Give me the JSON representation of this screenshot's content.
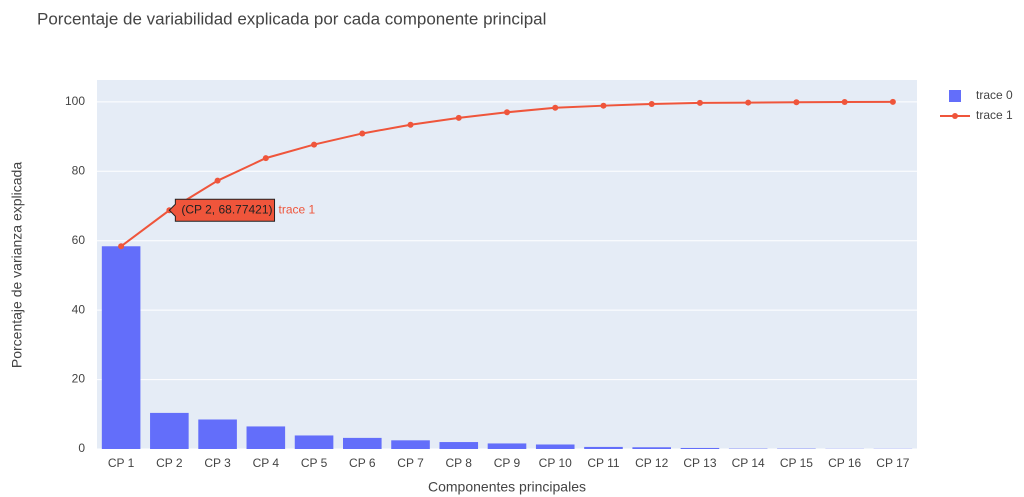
{
  "chart_data": {
    "type": "bar_line",
    "title": "Porcentaje de variabilidad explicada por cada componente principal",
    "xlabel": "Componentes principales",
    "ylabel": "Porcentaje de varianza explicada",
    "categories": [
      "CP 1",
      "CP 2",
      "CP 3",
      "CP 4",
      "CP 5",
      "CP 6",
      "CP 7",
      "CP 8",
      "CP 9",
      "CP 10",
      "CP 11",
      "CP 12",
      "CP 13",
      "CP 14",
      "CP 15",
      "CP 16",
      "CP 17"
    ],
    "series": [
      {
        "name": "trace 0",
        "type": "bar",
        "color": "#636efa",
        "values": [
          58.4,
          10.4,
          8.5,
          6.5,
          3.9,
          3.2,
          2.5,
          2.0,
          1.6,
          1.3,
          0.6,
          0.5,
          0.3,
          0.1,
          0.1,
          0.05,
          0.05
        ]
      },
      {
        "name": "trace 1",
        "type": "line",
        "color": "#ef553b",
        "values": [
          58.4,
          68.77421,
          77.3,
          83.8,
          87.7,
          90.9,
          93.4,
          95.4,
          97.0,
          98.3,
          98.9,
          99.4,
          99.7,
          99.8,
          99.9,
          99.95,
          100
        ]
      }
    ],
    "hover": {
      "series": 1,
      "index": 1,
      "text": "(CP 2, 68.77421)",
      "name": "trace 1"
    },
    "ylim": [
      0,
      106.3
    ],
    "yticks": [
      0,
      20,
      40,
      60,
      80,
      100
    ],
    "grid": true,
    "legend": "top-right"
  }
}
